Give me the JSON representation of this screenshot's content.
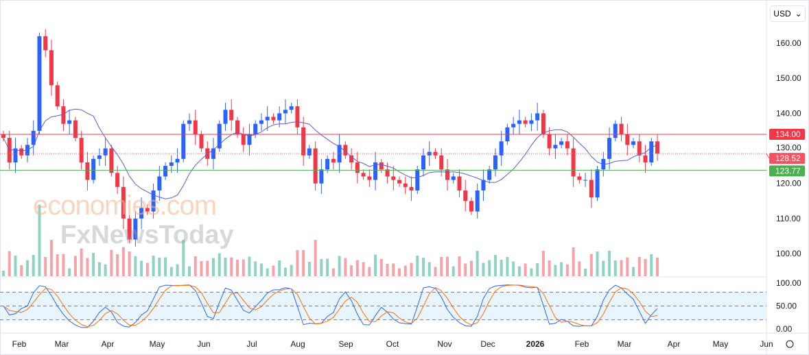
{
  "currency": {
    "label": "USD",
    "icon": "chevron-down-icon"
  },
  "watermark": {
    "line1": "economies.com",
    "line2": "FxNewsToday"
  },
  "chart_data": {
    "type": "candlestick",
    "price_axis": {
      "ticks": [
        "160.00",
        "150.00",
        "140.00",
        "130.00",
        "120.00",
        "110.00",
        "100.00"
      ],
      "values": [
        160,
        150,
        140,
        130,
        120,
        110,
        100
      ],
      "ylim": [
        97,
        165
      ]
    },
    "time_axis": [
      "Feb",
      "Mar",
      "Apr",
      "May",
      "Jun",
      "Jul",
      "Aug",
      "Sep",
      "Oct",
      "Nov",
      "Dec",
      "2026",
      "Feb",
      "Mar",
      "Apr",
      "May",
      "Jun"
    ],
    "closes": [
      133,
      126,
      130,
      128,
      131,
      135,
      162,
      158,
      148,
      142,
      137,
      138,
      133,
      126,
      121,
      127,
      128,
      130,
      123,
      119,
      110,
      104,
      110,
      113,
      112,
      118,
      122,
      125,
      126,
      127,
      137,
      138,
      134,
      130,
      127,
      130,
      137,
      141,
      138,
      134,
      131,
      134,
      137,
      138,
      139,
      138,
      140,
      141,
      142,
      136,
      128,
      130,
      120,
      124,
      127,
      126,
      131,
      128,
      126,
      123,
      122,
      121,
      126,
      124,
      122,
      121,
      120,
      119,
      118,
      124,
      128,
      129,
      128,
      124,
      121,
      122,
      118,
      115,
      112,
      118,
      121,
      124,
      128,
      132,
      136,
      137,
      138,
      137,
      138,
      140,
      134,
      130,
      131,
      132,
      130,
      122,
      121,
      121,
      116,
      124,
      127,
      133,
      137,
      134,
      131,
      132,
      128,
      126,
      132,
      128.52
    ],
    "levels": [
      {
        "label": "134.00",
        "value": 134.0,
        "color": "#f23645",
        "style": "solid"
      },
      {
        "label": "128.52",
        "value": 128.52,
        "color": "#f7525f",
        "style": "dotted"
      },
      {
        "label": "123.77",
        "value": 123.77,
        "color": "#4caf50",
        "style": "solid"
      }
    ],
    "moving_average": {
      "color": "#5b5bd6"
    },
    "stochastic": {
      "ticks": [
        "100.00",
        "50.00",
        "0.00"
      ],
      "values": [
        100,
        50,
        0
      ],
      "bands": [
        80,
        50,
        20
      ],
      "k_color": "#2962ff",
      "d_color": "#ff6d00"
    },
    "colors": {
      "up": "#2962ff",
      "down": "#f23645"
    }
  }
}
